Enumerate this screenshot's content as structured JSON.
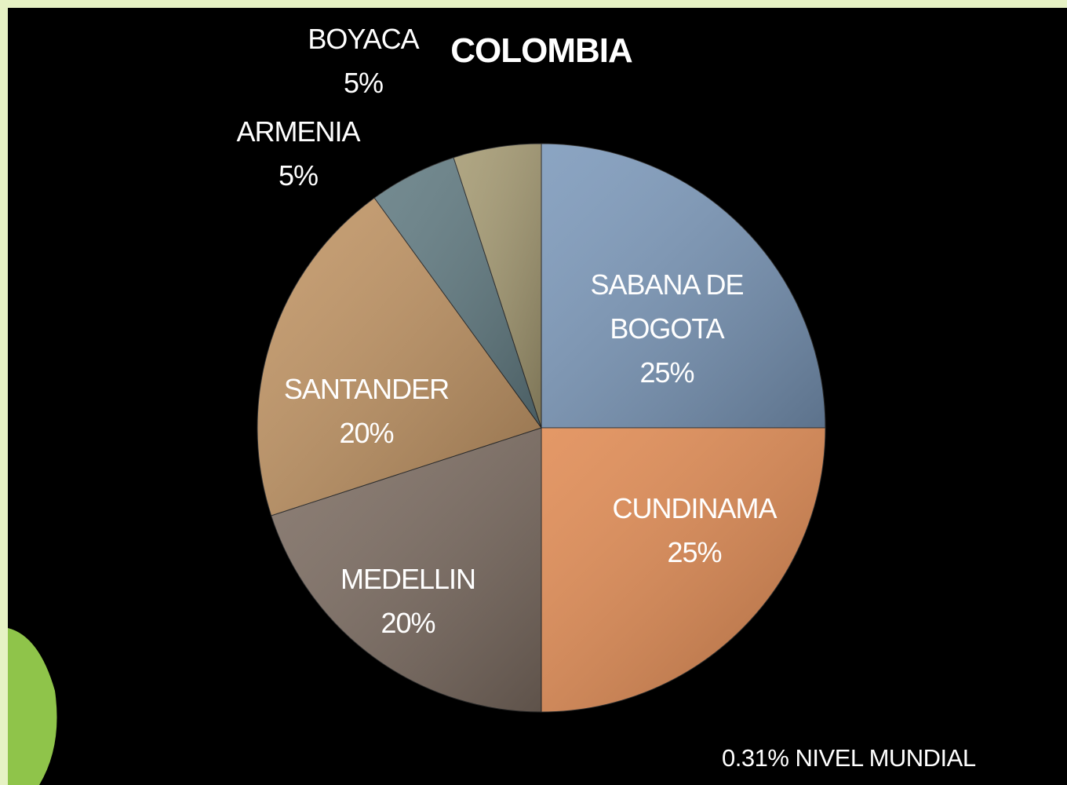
{
  "chart_data": {
    "type": "pie",
    "title": "COLOMBIA",
    "categories": [
      "SABANA DE BOGOTA",
      "CUNDINAMA",
      "MEDELLIN",
      "SANTANDER",
      "ARMENIA",
      "BOYACA"
    ],
    "values": [
      25,
      25,
      20,
      20,
      5,
      5
    ],
    "value_labels": [
      "25%",
      "25%",
      "20%",
      "20%",
      "5%",
      "5%"
    ],
    "colors": [
      "#7b98ba",
      "#e08a52",
      "#7d6d62",
      "#c19463",
      "#617b82",
      "#a59a72"
    ],
    "annotation": "0.31% NIVEL MUNDIAL"
  }
}
